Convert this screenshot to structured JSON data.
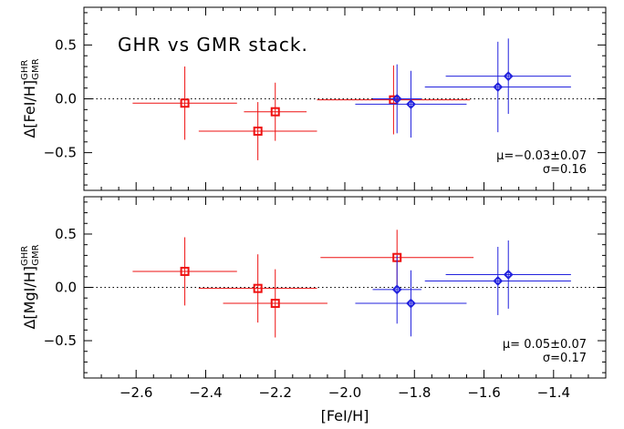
{
  "chart_data": [
    {
      "type": "scatter",
      "title": "GHR vs GMR stack.",
      "ylabel": {
        "main": "Δ[FeI/H]",
        "sup": "GHR",
        "sub": "GMR"
      },
      "xlim": [
        -2.75,
        -1.25
      ],
      "ylim": [
        -0.85,
        0.85
      ],
      "yticks": [
        -0.5,
        0.0,
        0.5
      ],
      "yticks_labels": [
        "−0.5",
        "0.0",
        "0.5"
      ],
      "zero_line": true,
      "annotation": [
        "μ=−0.03±0.07",
        "σ=0.16"
      ],
      "series": [
        {
          "marker": "square",
          "color": "#ee1111",
          "points": [
            {
              "x": -2.46,
              "y": -0.04,
              "xerr": 0.15,
              "yerr": 0.34
            },
            {
              "x": -2.25,
              "y": -0.3,
              "xerr": 0.17,
              "yerr": 0.27
            },
            {
              "x": -2.2,
              "y": -0.12,
              "xerr": 0.09,
              "yerr": 0.27
            },
            {
              "x": -1.86,
              "y": -0.01,
              "xerr": 0.22,
              "yerr": 0.32
            }
          ]
        },
        {
          "marker": "diamond",
          "color": "#2222dd",
          "points": [
            {
              "x": -1.85,
              "y": 0.0,
              "xerr": 0.07,
              "yerr": 0.32
            },
            {
              "x": -1.81,
              "y": -0.05,
              "xerr": 0.16,
              "yerr": 0.31
            },
            {
              "x": -1.56,
              "y": 0.11,
              "xerr": 0.21,
              "yerr": 0.42
            },
            {
              "x": -1.53,
              "y": 0.21,
              "xerr": 0.18,
              "yerr": 0.35
            }
          ]
        }
      ]
    },
    {
      "type": "scatter",
      "title": "",
      "xlabel": "[FeI/H]",
      "ylabel": {
        "main": "Δ[MgI/H]",
        "sup": "GHR",
        "sub": "GMR"
      },
      "xlim": [
        -2.75,
        -1.25
      ],
      "ylim": [
        -0.85,
        0.85
      ],
      "xticks": [
        -2.6,
        -2.4,
        -2.2,
        -2.0,
        -1.8,
        -1.6,
        -1.4
      ],
      "xticks_labels": [
        "−2.6",
        "−2.4",
        "−2.2",
        "−2.0",
        "−1.8",
        "−1.6",
        "−1.4"
      ],
      "yticks": [
        -0.5,
        0.0,
        0.5
      ],
      "yticks_labels": [
        "−0.5",
        "0.0",
        "0.5"
      ],
      "zero_line": true,
      "annotation": [
        "μ=  0.05±0.07",
        "σ=0.17"
      ],
      "series": [
        {
          "marker": "square",
          "color": "#ee1111",
          "points": [
            {
              "x": -2.46,
              "y": 0.15,
              "xerr": 0.15,
              "yerr": 0.32
            },
            {
              "x": -2.25,
              "y": -0.01,
              "xerr": 0.17,
              "yerr": 0.32
            },
            {
              "x": -2.2,
              "y": -0.15,
              "xerr": 0.15,
              "yerr": 0.32
            },
            {
              "x": -1.85,
              "y": 0.28,
              "xerr": 0.22,
              "yerr": 0.26
            }
          ]
        },
        {
          "marker": "diamond",
          "color": "#2222dd",
          "points": [
            {
              "x": -1.85,
              "y": -0.02,
              "xerr": 0.07,
              "yerr": 0.32
            },
            {
              "x": -1.81,
              "y": -0.15,
              "xerr": 0.16,
              "yerr": 0.31
            },
            {
              "x": -1.56,
              "y": 0.06,
              "xerr": 0.21,
              "yerr": 0.32
            },
            {
              "x": -1.53,
              "y": 0.12,
              "xerr": 0.18,
              "yerr": 0.32
            }
          ]
        }
      ]
    }
  ]
}
